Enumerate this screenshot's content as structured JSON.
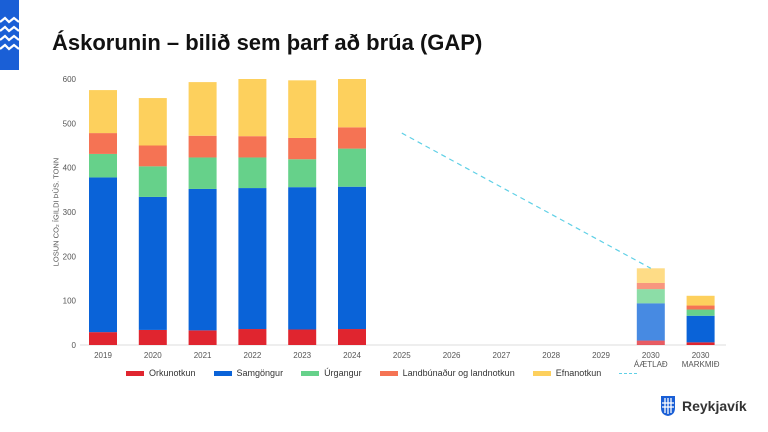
{
  "title": "Áskorunin – bilið sem þarf að brúa (GAP)",
  "brand": "Reykjavík",
  "chart_data": {
    "type": "bar",
    "stacked": true,
    "ylabel": "LOSUN CO₂ ÍGILDI ÞÚS. TONN",
    "ylim": [
      0,
      600
    ],
    "yticks": [
      0,
      100,
      200,
      300,
      400,
      500,
      600
    ],
    "categories": [
      "2019",
      "2020",
      "2021",
      "2022",
      "2023",
      "2024",
      "2025",
      "2026",
      "2027",
      "2028",
      "2029",
      "2030 ÁÆTLAÐ",
      "2030 MARKMIÐ"
    ],
    "category_lines": [
      [
        "2019"
      ],
      [
        "2020"
      ],
      [
        "2021"
      ],
      [
        "2022"
      ],
      [
        "2023"
      ],
      [
        "2024"
      ],
      [
        "2025"
      ],
      [
        "2026"
      ],
      [
        "2027"
      ],
      [
        "2028"
      ],
      [
        "2029"
      ],
      [
        "2030",
        "ÁÆTLAÐ"
      ],
      [
        "2030",
        "MARKMIÐ"
      ]
    ],
    "series": [
      {
        "name": "Orkunotkun",
        "color": "#e0252f",
        "values": [
          29,
          34,
          33,
          36,
          35,
          36,
          null,
          null,
          null,
          null,
          null,
          10,
          6
        ]
      },
      {
        "name": "Samgöngur",
        "color": "#0a63d8",
        "values": [
          349,
          300,
          319,
          318,
          321,
          321,
          null,
          null,
          null,
          null,
          null,
          84,
          60
        ]
      },
      {
        "name": "Úrgangur",
        "color": "#66d18a",
        "values": [
          53,
          69,
          71,
          69,
          63,
          86,
          null,
          null,
          null,
          null,
          null,
          32,
          14
        ]
      },
      {
        "name": "Landbúnaður og landnotkun",
        "color": "#f57354",
        "values": [
          47,
          47,
          49,
          48,
          48,
          48,
          null,
          null,
          null,
          null,
          null,
          14,
          9
        ]
      },
      {
        "name": "Efnanotkun",
        "color": "#fdd05d",
        "values": [
          97,
          107,
          121,
          129,
          130,
          109,
          null,
          null,
          null,
          null,
          null,
          33,
          22
        ]
      }
    ],
    "faded_categories": [
      "2030 ÁÆTLAÐ"
    ],
    "trend_line": {
      "color": "#5fd0e6",
      "style": "dashed",
      "points": [
        [
          "2025",
          478
        ],
        [
          "2030 ÁÆTLAÐ",
          173
        ]
      ]
    },
    "legend_position": "bottom",
    "grid": false
  }
}
